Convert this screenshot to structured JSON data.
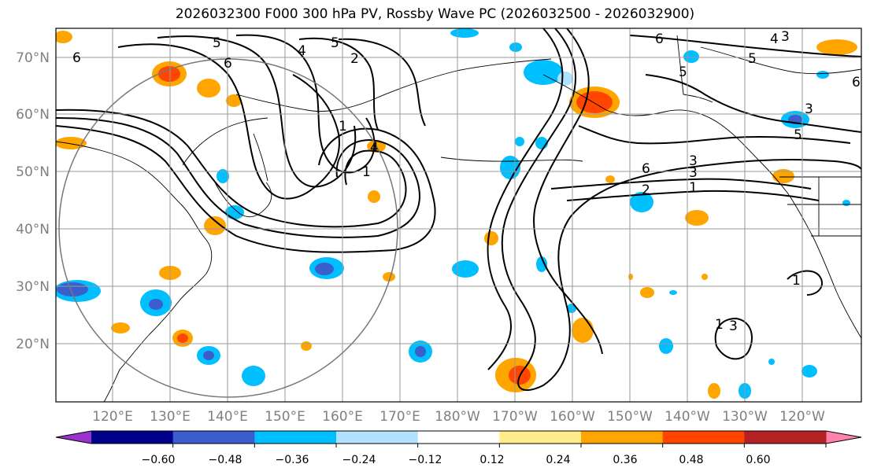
{
  "title": "2026032300 F000 300 hPa PV, Rossby Wave PC (2026032500 - 2026032900)",
  "lat_labels": [
    "70°N",
    "60°N",
    "50°N",
    "40°N",
    "30°N",
    "20°N"
  ],
  "lon_labels": [
    "120°E",
    "130°E",
    "140°E",
    "150°E",
    "160°E",
    "170°E",
    "180°W",
    "170°W",
    "160°W",
    "150°W",
    "140°W",
    "130°W",
    "120°W"
  ],
  "colorbar": {
    "ticks": [
      "−0.60",
      "−0.48",
      "−0.36",
      "−0.24",
      "−0.12",
      "0.12",
      "0.24",
      "0.36",
      "0.48",
      "0.60"
    ],
    "colors": [
      "#9a32cd",
      "#00008b",
      "#3a5fcd",
      "#00bfff",
      "#b0e2ff",
      "#ffffff",
      "#ffec8b",
      "#ffa500",
      "#ff4500",
      "#b22222",
      "#ff82ab"
    ]
  },
  "contour_labels": [
    "6",
    "5",
    "4",
    "5",
    "2",
    "6",
    "1",
    "1",
    "4",
    "6",
    "3",
    "5",
    "6",
    "4",
    "3",
    "5",
    "5",
    "3",
    "6",
    "3",
    "2",
    "1",
    "1",
    "3",
    "1"
  ]
}
